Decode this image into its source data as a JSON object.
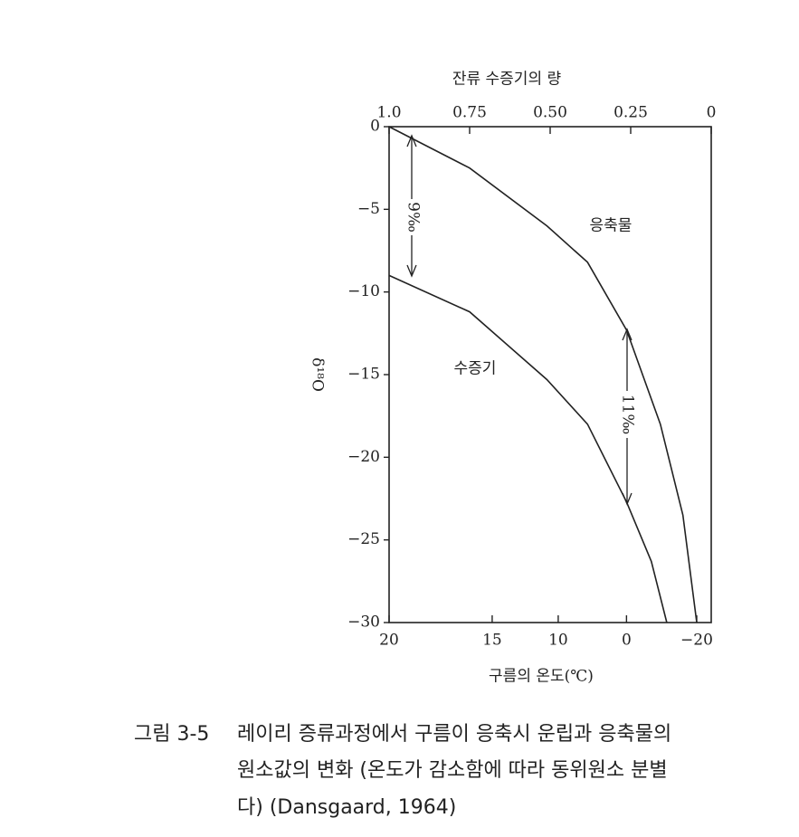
{
  "chart_data": {
    "type": "line",
    "title": "잔류 수증기의 량",
    "x_label": "구름의 온도(℃)",
    "y_label": "δ¹⁸O",
    "xlim": [
      1,
      0
    ],
    "xticks": [
      {
        "value": 1,
        "label": "1.0"
      },
      0.75,
      {
        "value": 0.5,
        "label": "0.50"
      },
      0.25,
      0
    ],
    "x2ticks": [
      {
        "value": 1,
        "label": "20"
      },
      {
        "value": 0.68,
        "label": "15"
      },
      {
        "value": 0.475,
        "label": "10"
      },
      {
        "value": 0.263,
        "label": "0"
      },
      {
        "value": 0.045,
        "label": "−20"
      }
    ],
    "ylim": [
      0,
      -30
    ],
    "yticks": [
      0,
      {
        "value": -5,
        "label": "−5"
      },
      {
        "value": -10,
        "label": "−10"
      },
      {
        "value": -15,
        "label": "−15"
      },
      {
        "value": -20,
        "label": "−20"
      },
      {
        "value": -25,
        "label": "−25"
      },
      {
        "value": -30,
        "label": "−30"
      }
    ],
    "series": [
      {
        "name": "응축물",
        "color": "#222222",
        "x": [
          1,
          0.75,
          0.51,
          0.384,
          0.263,
          0.158,
          0.088,
          0.045
        ],
        "values": [
          0,
          -2.5,
          -6,
          -8.2,
          -12.3,
          -18,
          -23.5,
          -30
        ]
      },
      {
        "name": "수증기",
        "color": "#222222",
        "x": [
          1,
          0.75,
          0.51,
          0.384,
          0.263,
          0.186,
          0.138
        ],
        "values": [
          -9,
          -11.2,
          -15.3,
          -18,
          -22.7,
          -26.3,
          -30
        ]
      }
    ],
    "annotations": [
      "9‰",
      "11‰"
    ],
    "caption": {
      "label": "그림 3-5",
      "lines": [
        "레이리 증류과정에서 구름이 응축시 운립과 응축물의",
        "원소값의 변화 (온도가 감소함에 따라 동위원소 분별",
        "다) (Dansgaard, 1964)"
      ]
    }
  }
}
